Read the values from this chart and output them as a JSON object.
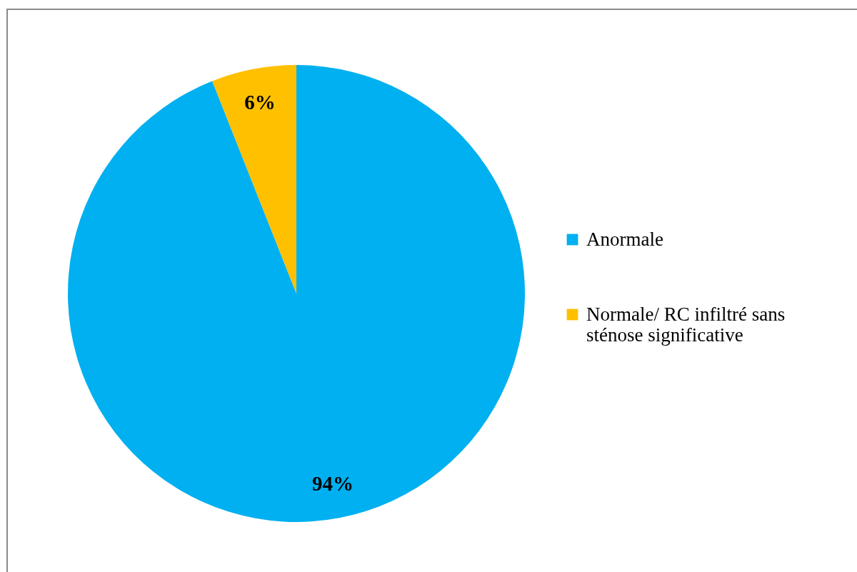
{
  "chart_data": {
    "type": "pie",
    "categories": [
      "Anormale",
      "Normale/ RC infiltré sans sténose significative"
    ],
    "values": [
      94,
      6
    ],
    "value_labels": [
      "94%",
      "6%"
    ],
    "colors": [
      "#00b0f0",
      "#ffc000"
    ],
    "legend": "right"
  }
}
